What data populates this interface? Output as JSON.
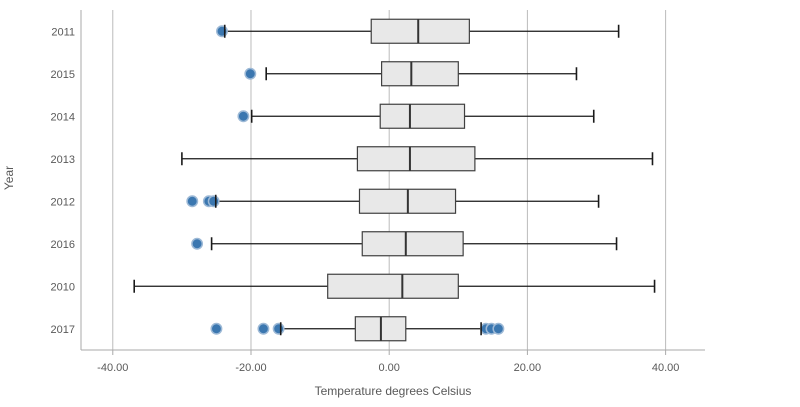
{
  "chart": {
    "xlabel": "Temperature degrees Celsius",
    "ylabel": "Year"
  },
  "chart_data": {
    "type": "boxplot",
    "orientation": "horizontal",
    "title": "",
    "xlabel": "Temperature degrees Celsius",
    "ylabel": "Year",
    "grid": true,
    "xlim": [
      -44.6,
      45.7
    ],
    "xticks": [
      -40,
      -20,
      0,
      20,
      40
    ],
    "xtick_labels": [
      "-40.00",
      "-20.00",
      "0.00",
      "20.00",
      "40.00"
    ],
    "categories": [
      "2011",
      "2015",
      "2014",
      "2013",
      "2012",
      "2016",
      "2010",
      "2017"
    ],
    "series": [
      {
        "year": "2011",
        "whisker_min": -23.8,
        "q1": -2.6,
        "median": 4.2,
        "q3": 11.6,
        "whisker_max": 33.2,
        "outliers": [
          -24.2
        ]
      },
      {
        "year": "2015",
        "whisker_min": -17.8,
        "q1": -1.1,
        "median": 3.2,
        "q3": 10.0,
        "whisker_max": 27.1,
        "outliers": [
          -20.1
        ]
      },
      {
        "year": "2014",
        "whisker_min": -19.9,
        "q1": -1.3,
        "median": 3.0,
        "q3": 10.9,
        "whisker_max": 29.6,
        "outliers": [
          -21.1
        ]
      },
      {
        "year": "2013",
        "whisker_min": -30.0,
        "q1": -4.6,
        "median": 3.0,
        "q3": 12.4,
        "whisker_max": 38.1,
        "outliers": []
      },
      {
        "year": "2012",
        "whisker_min": -25.1,
        "q1": -4.3,
        "median": 2.7,
        "q3": 9.6,
        "whisker_max": 30.3,
        "outliers": [
          -28.5,
          -26.1,
          -25.4
        ]
      },
      {
        "year": "2016",
        "whisker_min": -25.7,
        "q1": -3.9,
        "median": 2.4,
        "q3": 10.7,
        "whisker_max": 32.9,
        "outliers": [
          -27.8
        ]
      },
      {
        "year": "2010",
        "whisker_min": -36.9,
        "q1": -8.9,
        "median": 1.9,
        "q3": 10.0,
        "whisker_max": 38.4,
        "outliers": []
      },
      {
        "year": "2017",
        "whisker_min": -15.7,
        "q1": -4.9,
        "median": -1.2,
        "q3": 2.4,
        "whisker_max": 13.3,
        "outliers": [
          -25.0,
          -18.2,
          -16.0,
          14.0,
          14.8,
          15.8
        ]
      }
    ],
    "colors": {
      "outlier_fill": "#3b77b0",
      "outlier_ring": "#9db9d6",
      "box_fill": "#e8e8e8",
      "box_border": "#404040",
      "whisker": "#1a1a1a",
      "median": "#333333",
      "gridline": "#bbbbbb",
      "axis_line": "#aaaaaa",
      "text": "#595959"
    }
  }
}
